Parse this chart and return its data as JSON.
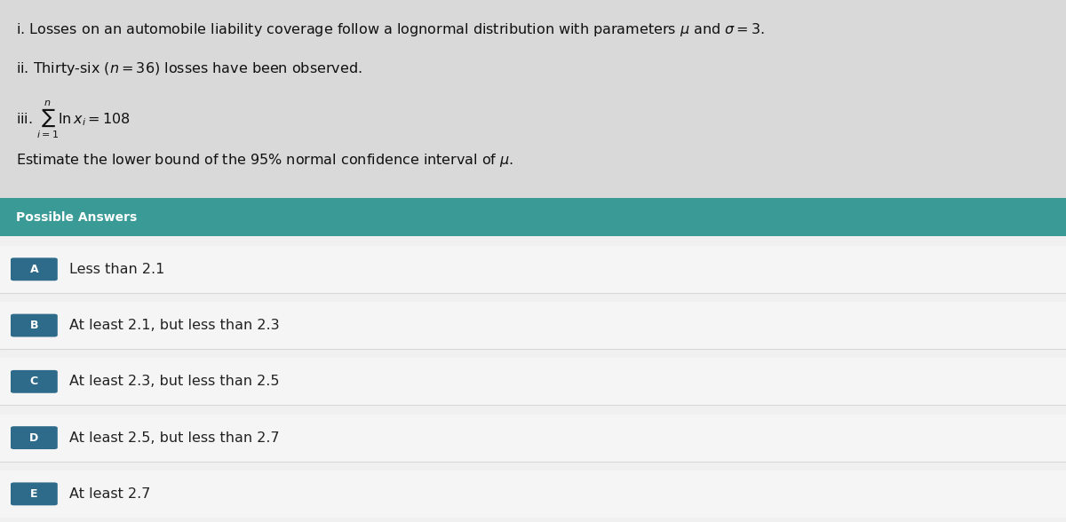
{
  "background_color": "#e8e8e8",
  "header_bg": "#3a9a96",
  "header_text": "Possible Answers",
  "header_text_color": "#ffffff",
  "header_font_size": 10,
  "answer_bg": "#f5f5f5",
  "answers_area_bg": "#f0f0f0",
  "option_box_color": "#2e6b8a",
  "option_text_color": "#ffffff",
  "answer_text_color": "#222222",
  "options": [
    "A",
    "B",
    "C",
    "D",
    "E"
  ],
  "answer_texts": [
    "Less than 2.1",
    "At least 2.1, but less than 2.3",
    "At least 2.3, but less than 2.5",
    "At least 2.5, but less than 2.7",
    "At least 2.7"
  ],
  "problem_lines": [
    "i. Losses on an automobile liability coverage follow a lognormal distribution with parameters $\\mu$ and $\\sigma = 3$.",
    "ii. Thirty-six ($n = 36$) losses have been observed.",
    "iii. $\\sum_{i=1}^{n}\\ln x_i = 108$"
  ],
  "question_text": "Estimate the lower bound of the 95% normal confidence interval of $\\mu$.",
  "top_bg": "#d9d9d9",
  "font_size_problem": 11.5,
  "font_size_question": 11.5,
  "font_size_answer": 11.5
}
